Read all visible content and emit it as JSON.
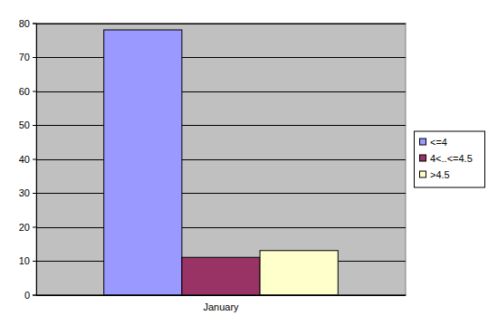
{
  "chart_data": {
    "type": "bar",
    "categories": [
      "January"
    ],
    "series": [
      {
        "name": "<=4",
        "color": "#9999ff",
        "values": [
          78
        ]
      },
      {
        "name": "4<..<=4.5",
        "color": "#993366",
        "values": [
          11
        ]
      },
      {
        "name": ">4.5",
        "color": "#ffffcc",
        "values": [
          13
        ]
      }
    ],
    "ylim": [
      0,
      80
    ],
    "yticks": [
      0,
      10,
      20,
      30,
      40,
      50,
      60,
      70,
      80
    ],
    "grid": true,
    "legend": "right"
  }
}
